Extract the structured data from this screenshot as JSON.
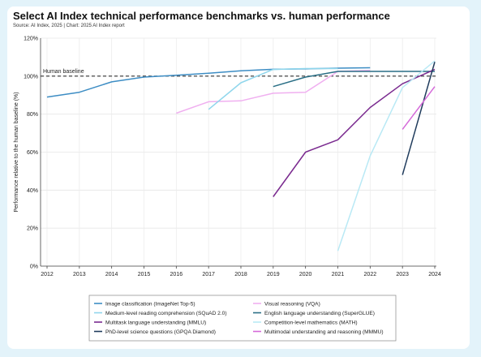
{
  "header": {
    "title": "Select AI Index technical performance benchmarks vs. human performance",
    "source": "Source: AI Index, 2025 | Chart: 2025 AI Index report"
  },
  "chart_data": {
    "type": "line",
    "title": "Select AI Index technical performance benchmarks vs. human performance",
    "xlabel": "",
    "ylabel": "Performance relative to the human baseline (%)",
    "ylim": [
      0,
      120
    ],
    "xlim": [
      2012,
      2024
    ],
    "x_ticks": [
      "2012",
      "2013",
      "2014",
      "2015",
      "2016",
      "2017",
      "2018",
      "2019",
      "2020",
      "2021",
      "2022",
      "2023",
      "2024"
    ],
    "y_ticks": [
      "0%",
      "20%",
      "40%",
      "60%",
      "80%",
      "100%",
      "120%"
    ],
    "y_tick_values": [
      0,
      20,
      40,
      60,
      80,
      100,
      120
    ],
    "grid": true,
    "legend_position": "bottom",
    "baseline": {
      "label": "Human baseline",
      "value": 100
    },
    "series": [
      {
        "name": "Image classification (ImageNet Top-5)",
        "color": "#3d8dc4",
        "points": [
          [
            2012,
            89
          ],
          [
            2013,
            91.5
          ],
          [
            2014,
            97
          ],
          [
            2015,
            99.5
          ],
          [
            2016,
            100.5
          ],
          [
            2017,
            101.5
          ],
          [
            2018,
            102.8
          ],
          [
            2019,
            103.6
          ],
          [
            2020,
            103.8
          ],
          [
            2021,
            104.2
          ],
          [
            2022,
            104.4
          ]
        ]
      },
      {
        "name": "Visual reasoning (VQA)",
        "color": "#f0b0f0",
        "points": [
          [
            2016,
            80.5
          ],
          [
            2017,
            86.5
          ],
          [
            2018,
            87
          ],
          [
            2019,
            91
          ],
          [
            2020,
            91.5
          ],
          [
            2021,
            102.5
          ],
          [
            2022,
            103
          ]
        ]
      },
      {
        "name": "Medium-level reading comprehension (SQuAD 2.0)",
        "color": "#8fd6ec",
        "points": [
          [
            2017,
            82.5
          ],
          [
            2018,
            96.5
          ],
          [
            2019,
            103.5
          ],
          [
            2020,
            104
          ],
          [
            2021,
            104
          ]
        ]
      },
      {
        "name": "English language understanding (SuperGLUE)",
        "color": "#2a6f86",
        "points": [
          [
            2019,
            94.5
          ],
          [
            2020,
            99.5
          ],
          [
            2021,
            102.5
          ],
          [
            2022,
            102.5
          ],
          [
            2023,
            102.5
          ],
          [
            2024,
            102.5
          ]
        ]
      },
      {
        "name": "Multitask language understanding (MMLU)",
        "color": "#7a2a8f",
        "points": [
          [
            2019,
            36.5
          ],
          [
            2020,
            60
          ],
          [
            2021,
            66.5
          ],
          [
            2022,
            83.5
          ],
          [
            2023,
            96
          ],
          [
            2024,
            103.5
          ]
        ]
      },
      {
        "name": "Competition-level mathematics (MATH)",
        "color": "#b9e9f5",
        "points": [
          [
            2021,
            8
          ],
          [
            2022,
            58
          ],
          [
            2023,
            94
          ],
          [
            2024,
            108
          ]
        ]
      },
      {
        "name": "PhD-level science questions (GPQA Diamond)",
        "color": "#1f3b5c",
        "points": [
          [
            2023,
            48
          ],
          [
            2024,
            107.5
          ]
        ]
      },
      {
        "name": "Multimodal understanding and reasoning (MMMU)",
        "color": "#d56ad9",
        "points": [
          [
            2023,
            72
          ],
          [
            2024,
            94.5
          ]
        ]
      }
    ]
  }
}
